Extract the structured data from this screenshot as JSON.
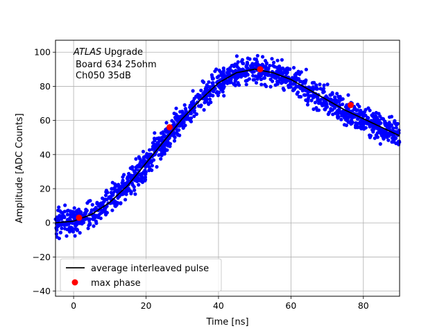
{
  "chart_data": {
    "type": "scatter",
    "xlabel": "Time [ns]",
    "ylabel": "Amplitude [ADC Counts]",
    "xlim": [
      -5,
      90
    ],
    "ylim": [
      -43,
      107
    ],
    "x_ticks": [
      0,
      20,
      40,
      60,
      80
    ],
    "y_ticks": [
      -40,
      -20,
      0,
      20,
      40,
      60,
      80,
      100
    ],
    "grid": true,
    "legend_position": "lower-left",
    "annotation": {
      "line1_italic": "ATLAS",
      "line1_rest": " Upgrade",
      "line2": "Board 634 25ohm",
      "line3": "Ch050 35dB"
    },
    "colors": {
      "samples": "#0000ff",
      "average": "#000000",
      "max_phase": "#ff0000",
      "grid": "#b0b0b0"
    },
    "series": [
      {
        "name": "average interleaved pulse",
        "kind": "line",
        "x": [
          -5,
          0,
          5,
          10,
          15,
          20,
          25,
          30,
          35,
          40,
          45,
          50,
          55,
          60,
          65,
          70,
          75,
          80,
          85,
          90
        ],
        "y": [
          0,
          1,
          5,
          12,
          22,
          35,
          48,
          61,
          72,
          82,
          88,
          90,
          88,
          84,
          78,
          72,
          66,
          61,
          56,
          51
        ]
      },
      {
        "name": "max phase",
        "kind": "points",
        "x": [
          1.5,
          26.5,
          51.5,
          76.5
        ],
        "y": [
          3,
          56,
          90,
          69
        ]
      }
    ],
    "samples": {
      "description_in_picture": "blue sample points scattered around the average pulse",
      "x_range": [
        -5,
        90
      ],
      "count_shown": "approx. 1500",
      "spread_adc": 4
    }
  }
}
